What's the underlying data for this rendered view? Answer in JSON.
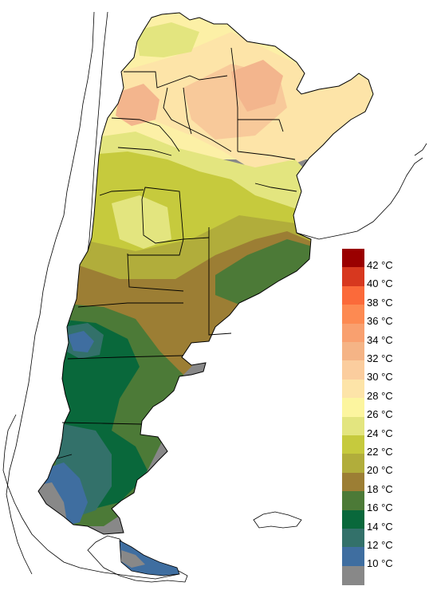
{
  "map": {
    "neighbor_outline_color": "#000000",
    "background_color": "#ffffff",
    "zones": [
      {
        "range": "26-28 °C",
        "color": "#fcf0a6"
      },
      {
        "range": "28-30 °C",
        "color": "#fde4a8"
      },
      {
        "range": "30-32 °C",
        "color": "#f8c99a"
      },
      {
        "range": "32-34 °C",
        "color": "#f3b58d"
      },
      {
        "range": "24-26 °C",
        "color": "#e3e57f"
      },
      {
        "range": "22-24 °C",
        "color": "#c6ca3d"
      },
      {
        "range": "20-22 °C",
        "color": "#b1ad3b"
      },
      {
        "range": "18-20 °C",
        "color": "#9c7e34"
      },
      {
        "range": "16-18 °C",
        "color": "#4c7a37"
      },
      {
        "range": "14-16 °C",
        "color": "#09683b"
      },
      {
        "range": "12-14 °C",
        "color": "#33716a"
      },
      {
        "range": "10-12 °C",
        "color": "#3f6ea0"
      },
      {
        "range": "< 10 °C",
        "color": "#888888"
      }
    ]
  },
  "legend": {
    "items": [
      {
        "label": "42 °C",
        "color": "#9a0000"
      },
      {
        "label": "40 °C",
        "color": "#d7381f"
      },
      {
        "label": "38 °C",
        "color": "#fb6a3a"
      },
      {
        "label": "36 °C",
        "color": "#fd8a52"
      },
      {
        "label": "34 °C",
        "color": "#f9a06f"
      },
      {
        "label": "32 °C",
        "color": "#f5b486"
      },
      {
        "label": "30 °C",
        "color": "#fbcd9e"
      },
      {
        "label": "28 °C",
        "color": "#fde4a8"
      },
      {
        "label": "26 °C",
        "color": "#fcf59f"
      },
      {
        "label": "24 °C",
        "color": "#e3e57f"
      },
      {
        "label": "22 °C",
        "color": "#c6ca3d"
      },
      {
        "label": "20 °C",
        "color": "#b1ad3b"
      },
      {
        "label": "18 °C",
        "color": "#9c7e34"
      },
      {
        "label": "16 °C",
        "color": "#4c7a37"
      },
      {
        "label": "14 °C",
        "color": "#09683b"
      },
      {
        "label": "12 °C",
        "color": "#33716a"
      },
      {
        "label": "10 °C",
        "color": "#3f6ea0"
      },
      {
        "label": "",
        "color": "#888888"
      }
    ]
  }
}
